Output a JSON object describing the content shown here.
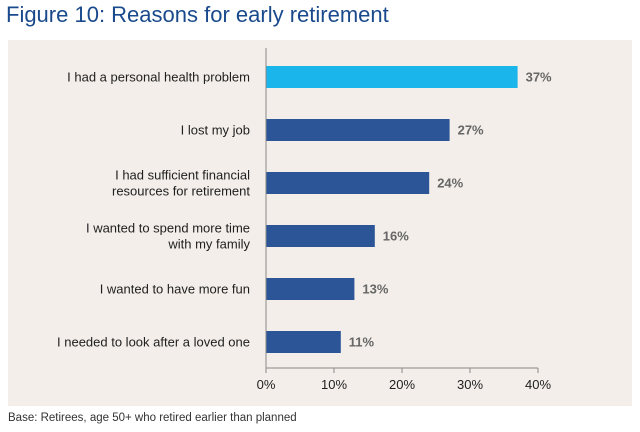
{
  "title": "Figure 10: Reasons for early retirement",
  "footnote": "Base: Retirees, age 50+ who retired earlier than planned",
  "colors": {
    "title": "#1a4a8c",
    "bar": "#2b5597",
    "bar_highlight": "#19b5eb",
    "panel_background": "#f3eee9"
  },
  "chart_data": {
    "type": "bar",
    "orientation": "horizontal",
    "categories": [
      [
        "I had a personal health problem"
      ],
      [
        "I lost my job"
      ],
      [
        "I had sufficient financial",
        "resources for retirement"
      ],
      [
        "I wanted to spend more time",
        "with my family"
      ],
      [
        "I wanted to have more fun"
      ],
      [
        "I needed to look after a loved one"
      ]
    ],
    "values": [
      37,
      27,
      24,
      16,
      13,
      11
    ],
    "value_labels": [
      "37%",
      "27%",
      "24%",
      "16%",
      "13%",
      "11%"
    ],
    "highlight_index": 0,
    "xlim": [
      0,
      40
    ],
    "xticks": [
      0,
      10,
      20,
      30,
      40
    ],
    "xtick_labels": [
      "0%",
      "10%",
      "20%",
      "30%",
      "40%"
    ],
    "grid": false
  }
}
